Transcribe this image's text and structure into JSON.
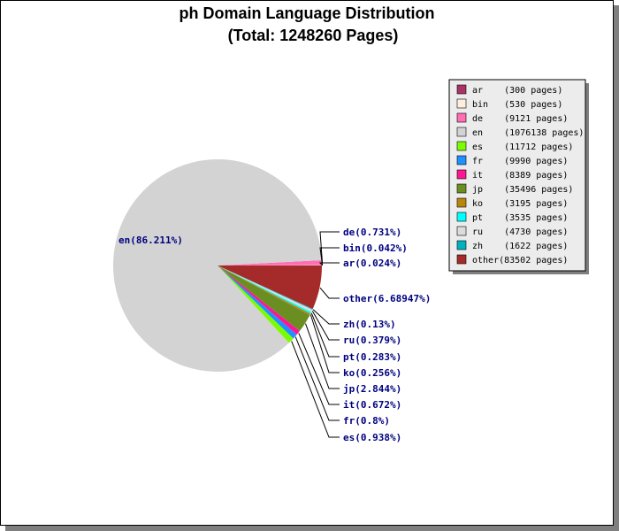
{
  "chart_data": {
    "type": "pie",
    "title": "ph Domain Language Distribution",
    "subtitle": "(Total: 1248260 Pages)",
    "series": [
      {
        "name": "ar",
        "pages": 300,
        "percent_label": "0.024%",
        "color": "#aa3366",
        "legend_text": "ar    (300 pages)"
      },
      {
        "name": "bin",
        "pages": 530,
        "percent_label": "0.042%",
        "color": "#ffeedd",
        "legend_text": "bin   (530 pages)"
      },
      {
        "name": "de",
        "pages": 9121,
        "percent_label": "0.731%",
        "color": "#ff6eb4",
        "legend_text": "de    (9121 pages)"
      },
      {
        "name": "en",
        "pages": 1076138,
        "percent_label": "86.211%",
        "color": "#d3d3d3",
        "legend_text": "en    (1076138 pages)"
      },
      {
        "name": "es",
        "pages": 11712,
        "percent_label": "0.938%",
        "color": "#7cfc00",
        "legend_text": "es    (11712 pages)"
      },
      {
        "name": "fr",
        "pages": 9990,
        "percent_label": "0.8%",
        "color": "#1e90ff",
        "legend_text": "fr    (9990 pages)"
      },
      {
        "name": "it",
        "pages": 8389,
        "percent_label": "0.672%",
        "color": "#ff1493",
        "legend_text": "it    (8389 pages)"
      },
      {
        "name": "jp",
        "pages": 35496,
        "percent_label": "2.844%",
        "color": "#6b8e23",
        "legend_text": "jp    (35496 pages)"
      },
      {
        "name": "ko",
        "pages": 3195,
        "percent_label": "0.256%",
        "color": "#b8860b",
        "legend_text": "ko    (3195 pages)"
      },
      {
        "name": "pt",
        "pages": 3535,
        "percent_label": "0.283%",
        "color": "#00ffff",
        "legend_text": "pt    (3535 pages)"
      },
      {
        "name": "ru",
        "pages": 4730,
        "percent_label": "0.379%",
        "color": "#dcdcdc",
        "legend_text": "ru    (4730 pages)"
      },
      {
        "name": "zh",
        "pages": 1622,
        "percent_label": "0.13%",
        "color": "#00b2be",
        "legend_text": "zh    (1622 pages)"
      },
      {
        "name": "other",
        "pages": 83502,
        "percent_label": "6.68947%",
        "color": "#a52a2a",
        "legend_text": "other(83502 pages)"
      }
    ],
    "legend_placement": "top-right"
  }
}
